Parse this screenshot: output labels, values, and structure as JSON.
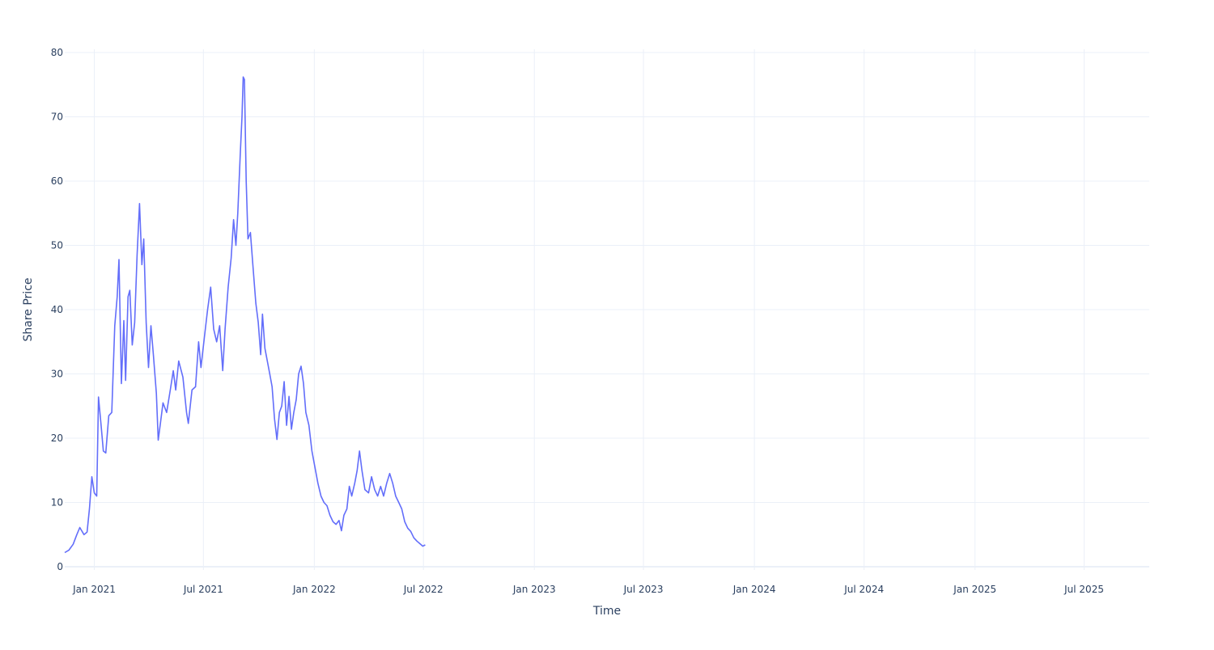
{
  "chart_data": {
    "type": "line",
    "title": "",
    "xlabel": "Time",
    "ylabel": "Share Price",
    "x_type": "date",
    "xlim": [
      "2020-11-13",
      "2025-10-17"
    ],
    "ylim": [
      -0.5,
      80.5
    ],
    "x_ticks": [
      {
        "date": "2021-01-01",
        "label": "Jan 2021"
      },
      {
        "date": "2021-07-01",
        "label": "Jul 2021"
      },
      {
        "date": "2022-01-01",
        "label": "Jan 2022"
      },
      {
        "date": "2022-07-01",
        "label": "Jul 2022"
      },
      {
        "date": "2023-01-01",
        "label": "Jan 2023"
      },
      {
        "date": "2023-07-01",
        "label": "Jul 2023"
      },
      {
        "date": "2024-01-01",
        "label": "Jan 2024"
      },
      {
        "date": "2024-07-01",
        "label": "Jul 2024"
      },
      {
        "date": "2025-01-01",
        "label": "Jan 2025"
      },
      {
        "date": "2025-07-01",
        "label": "Jul 2025"
      }
    ],
    "y_ticks": [
      0,
      10,
      20,
      30,
      40,
      50,
      60,
      70,
      80
    ],
    "grid": true,
    "colors": {
      "line": "#636efa",
      "grid": "#ebf0f8",
      "text": "#2a3f5f"
    },
    "series": [
      {
        "points": [
          [
            "2020-11-13",
            2.2
          ],
          [
            "2020-11-20",
            2.6
          ],
          [
            "2020-11-27",
            3.5
          ],
          [
            "2020-12-03",
            5.0
          ],
          [
            "2020-12-08",
            6.1
          ],
          [
            "2020-12-15",
            5.0
          ],
          [
            "2020-12-20",
            5.4
          ],
          [
            "2020-12-24",
            9.0
          ],
          [
            "2020-12-28",
            14.0
          ],
          [
            "2021-01-01",
            11.5
          ],
          [
            "2021-01-05",
            11.0
          ],
          [
            "2021-01-08",
            26.4
          ],
          [
            "2021-01-12",
            22.3
          ],
          [
            "2021-01-16",
            18.0
          ],
          [
            "2021-01-20",
            17.7
          ],
          [
            "2021-01-25",
            23.5
          ],
          [
            "2021-01-30",
            24.0
          ],
          [
            "2021-02-04",
            37.5
          ],
          [
            "2021-02-08",
            42.0
          ],
          [
            "2021-02-11",
            47.8
          ],
          [
            "2021-02-15",
            28.5
          ],
          [
            "2021-02-19",
            38.3
          ],
          [
            "2021-02-22",
            29.0
          ],
          [
            "2021-02-26",
            42.0
          ],
          [
            "2021-03-01",
            43.0
          ],
          [
            "2021-03-05",
            34.5
          ],
          [
            "2021-03-09",
            38.0
          ],
          [
            "2021-03-13",
            48.5
          ],
          [
            "2021-03-17",
            56.5
          ],
          [
            "2021-03-21",
            47.0
          ],
          [
            "2021-03-24",
            51.0
          ],
          [
            "2021-03-28",
            38.0
          ],
          [
            "2021-04-01",
            31.0
          ],
          [
            "2021-04-05",
            37.5
          ],
          [
            "2021-04-09",
            33.0
          ],
          [
            "2021-04-14",
            27.0
          ],
          [
            "2021-04-17",
            19.7
          ],
          [
            "2021-04-21",
            22.5
          ],
          [
            "2021-04-25",
            25.5
          ],
          [
            "2021-05-01",
            24.0
          ],
          [
            "2021-05-07",
            27.5
          ],
          [
            "2021-05-12",
            30.5
          ],
          [
            "2021-05-16",
            27.5
          ],
          [
            "2021-05-21",
            32.0
          ],
          [
            "2021-05-28",
            29.5
          ],
          [
            "2021-06-03",
            24.0
          ],
          [
            "2021-06-06",
            22.3
          ],
          [
            "2021-06-12",
            27.5
          ],
          [
            "2021-06-18",
            28.0
          ],
          [
            "2021-06-23",
            35.0
          ],
          [
            "2021-06-27",
            31.0
          ],
          [
            "2021-07-03",
            36.0
          ],
          [
            "2021-07-08",
            40.0
          ],
          [
            "2021-07-13",
            43.5
          ],
          [
            "2021-07-18",
            37.0
          ],
          [
            "2021-07-23",
            35.0
          ],
          [
            "2021-07-28",
            37.5
          ],
          [
            "2021-08-02",
            30.5
          ],
          [
            "2021-08-06",
            37.0
          ],
          [
            "2021-08-11",
            43.5
          ],
          [
            "2021-08-16",
            48.0
          ],
          [
            "2021-08-20",
            54.0
          ],
          [
            "2021-08-24",
            50.0
          ],
          [
            "2021-08-27",
            55.0
          ],
          [
            "2021-08-31",
            64.0
          ],
          [
            "2021-09-03",
            70.0
          ],
          [
            "2021-09-05",
            76.2
          ],
          [
            "2021-09-07",
            75.8
          ],
          [
            "2021-09-10",
            60.0
          ],
          [
            "2021-09-13",
            51.0
          ],
          [
            "2021-09-17",
            52.0
          ],
          [
            "2021-09-21",
            47.0
          ],
          [
            "2021-09-26",
            41.0
          ],
          [
            "2021-09-30",
            38.0
          ],
          [
            "2021-10-04",
            33.0
          ],
          [
            "2021-10-07",
            39.3
          ],
          [
            "2021-10-11",
            34.0
          ],
          [
            "2021-10-15",
            32.0
          ],
          [
            "2021-10-19",
            30.0
          ],
          [
            "2021-10-23",
            28.0
          ],
          [
            "2021-10-27",
            23.0
          ],
          [
            "2021-10-31",
            19.8
          ],
          [
            "2021-11-04",
            24.0
          ],
          [
            "2021-11-08",
            25.0
          ],
          [
            "2021-11-12",
            28.8
          ],
          [
            "2021-11-16",
            22.0
          ],
          [
            "2021-11-20",
            26.5
          ],
          [
            "2021-11-24",
            21.4
          ],
          [
            "2021-11-28",
            24.0
          ],
          [
            "2021-12-02",
            26.0
          ],
          [
            "2021-12-06",
            30.0
          ],
          [
            "2021-12-10",
            31.2
          ],
          [
            "2021-12-14",
            28.5
          ],
          [
            "2021-12-18",
            24.0
          ],
          [
            "2021-12-23",
            22.0
          ],
          [
            "2021-12-28",
            18.0
          ],
          [
            "2022-01-02",
            15.5
          ],
          [
            "2022-01-07",
            13.0
          ],
          [
            "2022-01-12",
            11.0
          ],
          [
            "2022-01-17",
            10.0
          ],
          [
            "2022-01-22",
            9.5
          ],
          [
            "2022-01-27",
            8.0
          ],
          [
            "2022-02-01",
            7.0
          ],
          [
            "2022-02-06",
            6.6
          ],
          [
            "2022-02-11",
            7.2
          ],
          [
            "2022-02-15",
            5.6
          ],
          [
            "2022-02-19",
            8.0
          ],
          [
            "2022-02-24",
            9.0
          ],
          [
            "2022-02-28",
            12.5
          ],
          [
            "2022-03-04",
            11.0
          ],
          [
            "2022-03-09",
            13.0
          ],
          [
            "2022-03-13",
            15.0
          ],
          [
            "2022-03-17",
            18.0
          ],
          [
            "2022-03-21",
            15.0
          ],
          [
            "2022-03-26",
            12.0
          ],
          [
            "2022-04-01",
            11.5
          ],
          [
            "2022-04-06",
            14.0
          ],
          [
            "2022-04-11",
            12.0
          ],
          [
            "2022-04-16",
            11.0
          ],
          [
            "2022-04-21",
            12.5
          ],
          [
            "2022-04-26",
            11.0
          ],
          [
            "2022-05-01",
            13.0
          ],
          [
            "2022-05-06",
            14.5
          ],
          [
            "2022-05-11",
            13.0
          ],
          [
            "2022-05-16",
            11.0
          ],
          [
            "2022-05-21",
            10.0
          ],
          [
            "2022-05-26",
            9.0
          ],
          [
            "2022-05-31",
            7.0
          ],
          [
            "2022-06-05",
            6.0
          ],
          [
            "2022-06-10",
            5.5
          ],
          [
            "2022-06-15",
            4.5
          ],
          [
            "2022-06-20",
            4.0
          ],
          [
            "2022-06-25",
            3.6
          ],
          [
            "2022-06-30",
            3.2
          ],
          [
            "2022-07-04",
            3.4
          ]
        ]
      }
    ]
  }
}
